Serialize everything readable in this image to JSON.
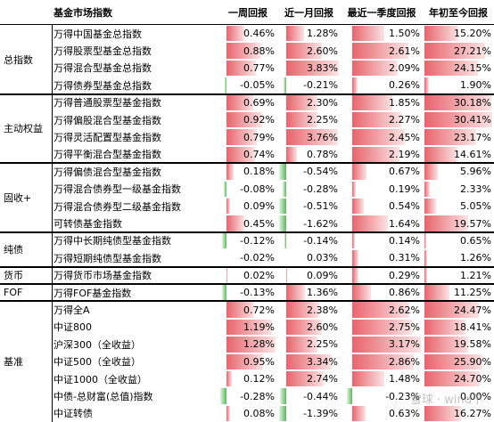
{
  "chart_data": {
    "type": "table",
    "header": {
      "name": "基金市场指数",
      "columns": [
        "一周回报",
        "近一月回报",
        "最近一季度回报",
        "年初至今回报"
      ]
    },
    "groups": [
      {
        "label": "总指数",
        "rows": [
          {
            "name": "万得中国基金总指数",
            "values": [
              0.46,
              1.28,
              1.5,
              15.2
            ],
            "labels": [
              "0.46%",
              "1.28%",
              "1.50%",
              "15.20%"
            ]
          },
          {
            "name": "万得股票型基金总指数",
            "values": [
              0.88,
              2.6,
              2.61,
              27.21
            ],
            "labels": [
              "0.88%",
              "2.60%",
              "2.61%",
              "27.21%"
            ]
          },
          {
            "name": "万得混合型基金总指数",
            "values": [
              0.77,
              3.83,
              2.09,
              24.15
            ],
            "labels": [
              "0.77%",
              "3.83%",
              "2.09%",
              "24.15%"
            ]
          },
          {
            "name": "万得债券型基金总指数",
            "values": [
              -0.05,
              -0.21,
              0.26,
              1.9
            ],
            "labels": [
              "-0.05%",
              "-0.21%",
              "0.26%",
              "1.90%"
            ]
          }
        ]
      },
      {
        "label": "主动权益",
        "rows": [
          {
            "name": "万得普通股票型基金指数",
            "values": [
              0.69,
              2.3,
              1.85,
              30.18
            ],
            "labels": [
              "0.69%",
              "2.30%",
              "1.85%",
              "30.18%"
            ]
          },
          {
            "name": "万得偏股混合型基金指数",
            "values": [
              0.92,
              2.25,
              2.27,
              30.41
            ],
            "labels": [
              "0.92%",
              "2.25%",
              "2.27%",
              "30.41%"
            ]
          },
          {
            "name": "万得灵活配置型基金指数",
            "values": [
              0.79,
              3.76,
              2.45,
              23.17
            ],
            "labels": [
              "0.79%",
              "3.76%",
              "2.45%",
              "23.17%"
            ]
          },
          {
            "name": "万得平衡混合型基金指数",
            "values": [
              0.74,
              0.78,
              2.19,
              14.61
            ],
            "labels": [
              "0.74%",
              "0.78%",
              "2.19%",
              "14.61%"
            ]
          }
        ]
      },
      {
        "label": "固收+",
        "rows": [
          {
            "name": "万得偏债混合型基金指数",
            "values": [
              0.18,
              -0.54,
              0.67,
              5.96
            ],
            "labels": [
              "0.18%",
              "-0.54%",
              "0.67%",
              "5.96%"
            ]
          },
          {
            "name": "万得混合债券型一级基金指数",
            "values": [
              -0.08,
              -0.28,
              0.19,
              2.33
            ],
            "labels": [
              "-0.08%",
              "-0.28%",
              "0.19%",
              "2.33%"
            ]
          },
          {
            "name": "万得混合债券型二级基金指数",
            "values": [
              0.09,
              -0.51,
              0.54,
              5.05
            ],
            "labels": [
              "0.09%",
              "-0.51%",
              "0.54%",
              "5.05%"
            ]
          },
          {
            "name": "可转债基金指数",
            "values": [
              0.45,
              -1.62,
              1.64,
              19.57
            ],
            "labels": [
              "0.45%",
              "-1.62%",
              "1.64%",
              "19.57%"
            ]
          }
        ]
      },
      {
        "label": "纯债",
        "rows": [
          {
            "name": "万得中长期纯债型基金指数",
            "values": [
              -0.12,
              -0.14,
              0.14,
              0.65
            ],
            "labels": [
              "-0.12%",
              "-0.14%",
              "0.14%",
              "0.65%"
            ]
          },
          {
            "name": "万得短期纯债型基金指数",
            "values": [
              -0.02,
              0.03,
              0.31,
              1.26
            ],
            "labels": [
              "-0.02%",
              "0.03%",
              "0.31%",
              "1.26%"
            ]
          }
        ]
      },
      {
        "label": "货币",
        "rows": [
          {
            "name": "万得货币市场基金指数",
            "values": [
              0.02,
              0.09,
              0.29,
              1.21
            ],
            "labels": [
              "0.02%",
              "0.09%",
              "0.29%",
              "1.21%"
            ]
          }
        ]
      },
      {
        "label": "FOF",
        "rows": [
          {
            "name": "万得FOF基金指数",
            "values": [
              -0.13,
              1.36,
              0.86,
              11.25
            ],
            "labels": [
              "-0.13%",
              "1.36%",
              "0.86%",
              "11.25%"
            ]
          }
        ]
      },
      {
        "label": "基准",
        "rows": [
          {
            "name": "万得全A",
            "values": [
              0.72,
              2.38,
              2.62,
              24.47
            ],
            "labels": [
              "0.72%",
              "2.38%",
              "2.62%",
              "24.47%"
            ]
          },
          {
            "name": "中证800",
            "values": [
              1.19,
              2.6,
              2.75,
              18.41
            ],
            "labels": [
              "1.19%",
              "2.60%",
              "2.75%",
              "18.41%"
            ]
          },
          {
            "name": "沪深300（全收益）",
            "values": [
              1.28,
              2.25,
              3.17,
              19.58
            ],
            "labels": [
              "1.28%",
              "2.25%",
              "3.17%",
              "19.58%"
            ]
          },
          {
            "name": "中证500（全收益）",
            "values": [
              0.95,
              3.34,
              2.86,
              25.9
            ],
            "labels": [
              "0.95%",
              "3.34%",
              "2.86%",
              "25.90%"
            ]
          },
          {
            "name": "中证1000（全收益）",
            "values": [
              0.12,
              2.74,
              1.48,
              24.7
            ],
            "labels": [
              "0.12%",
              "2.74%",
              "1.48%",
              "24.70%"
            ]
          },
          {
            "name": "中债-总财富(总值)指数",
            "values": [
              -0.28,
              -0.44,
              -0.23,
              0.0
            ],
            "labels": [
              "-0.28%",
              "-0.44%",
              "-0.23%",
              "0.00%"
            ]
          },
          {
            "name": "中证转债",
            "values": [
              0.08,
              -1.39,
              0.63,
              16.27
            ],
            "labels": [
              "0.08%",
              "-1.39%",
              "0.63%",
              "16.27%"
            ]
          }
        ]
      }
    ]
  },
  "watermark": "雪球 · wind下",
  "colors": {
    "positive": "#e8646c",
    "negative": "#5cb85c",
    "border": "#000000"
  }
}
